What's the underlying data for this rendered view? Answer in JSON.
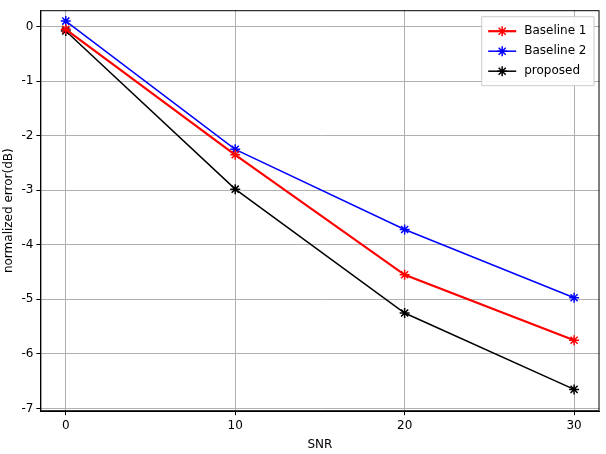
{
  "chart_data": {
    "type": "line",
    "x_label": "SNR",
    "y_label": "normalized error(dB)",
    "x": [
      0,
      10,
      20,
      30
    ],
    "series": [
      {
        "name": "Baseline 1",
        "color": "#ff0000",
        "marker": "star",
        "values": [
          -0.05,
          -2.35,
          -4.55,
          -5.75
        ]
      },
      {
        "name": "Baseline 2",
        "color": "#0000ff",
        "marker": "star",
        "values": [
          0.1,
          -2.25,
          -3.72,
          -4.97
        ]
      },
      {
        "name": "proposed",
        "color": "#000000",
        "marker": "star",
        "values": [
          -0.08,
          -2.98,
          -5.25,
          -6.65
        ]
      }
    ],
    "xlim": [
      -1.5,
      31.5
    ],
    "xticks": [
      0,
      10,
      20,
      30
    ],
    "ylim": [
      -7.05,
      0.3
    ],
    "yticks": [
      -7,
      -6,
      -5,
      -4,
      -3,
      -2,
      -1,
      0
    ],
    "grid": true,
    "legend": "upper right"
  }
}
